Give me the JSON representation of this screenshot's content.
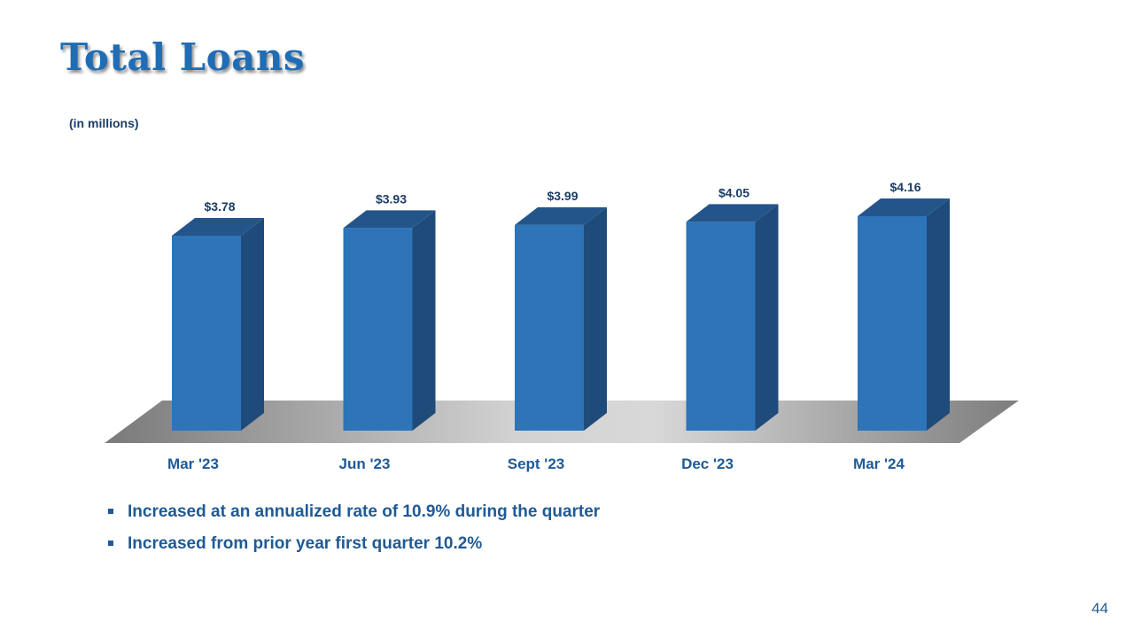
{
  "slide": {
    "title": "Total Loans",
    "unit_note": "(in millions)",
    "bullets": [
      "Increased at an annualized rate of 10.9% during the quarter",
      "Increased from prior year first quarter 10.2%"
    ],
    "page_number": "44"
  },
  "chart_data": {
    "type": "bar",
    "title": "",
    "xlabel": "",
    "ylabel": "",
    "categories": [
      "Mar '23",
      "Jun '23",
      "Sept '23",
      "Dec '23",
      "Mar '24"
    ],
    "values": [
      3.78,
      3.93,
      3.99,
      4.05,
      4.16
    ],
    "data_labels": [
      "$3.78",
      "$3.93",
      "$3.99",
      "$4.05",
      "$4.16"
    ],
    "bar_color": "#2e74b8",
    "bar_side_color": "#1f4b7a",
    "bar_top_color": "#24558a",
    "label_color": "#1b3d66",
    "grid": false,
    "legend": "none"
  }
}
